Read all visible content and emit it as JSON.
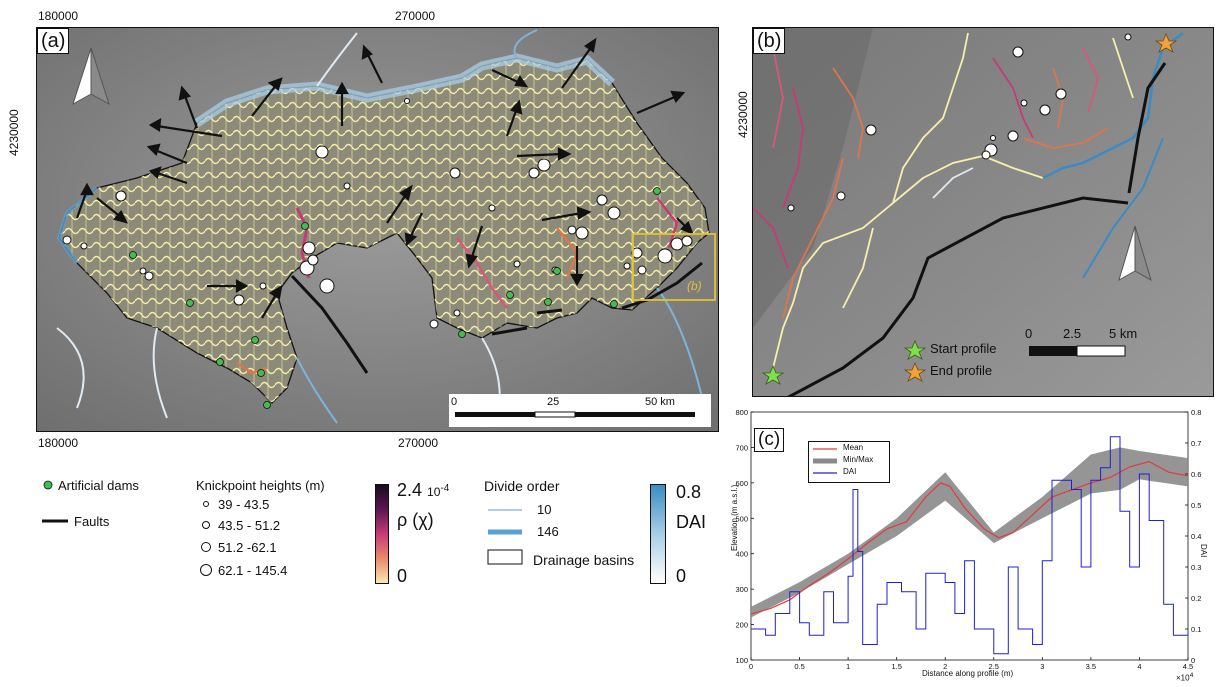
{
  "panel_a": {
    "label": "(a)",
    "x_ticks_top": [
      "180000",
      "270000"
    ],
    "x_ticks_bottom": [
      "180000",
      "270000"
    ],
    "y_tick": "4230000",
    "inset_label": "(b)",
    "scalebar": {
      "ticks": [
        "0",
        "25",
        "50 km"
      ]
    }
  },
  "panel_b": {
    "label": "(b)",
    "y_tick": "4230000",
    "start_label": "Start profile",
    "end_label": "End profile",
    "scalebar": {
      "ticks": [
        "0",
        "2.5",
        "5 km"
      ]
    }
  },
  "panel_c": {
    "label": "(c)",
    "ylabel_left": "Elevation (m a.s.l.)",
    "ylabel_right": "DAI",
    "xlabel": "Distance along profile (m)",
    "x_exponent": "×10",
    "x_exponent_power": "4",
    "legend": [
      "Mean",
      "Min/Max",
      "DAI"
    ]
  },
  "legend": {
    "dams": "Artificial dams",
    "faults": "Faults",
    "knick_title": "Knickpoint heights (m)",
    "knick_classes": [
      "39 - 43.5",
      "43.5 - 51.2",
      "51.2 -62.1",
      "62.1 - 145.4"
    ],
    "rho_max": "2.4",
    "rho_exp": "10",
    "rho_exp_power": "-4",
    "rho_label": "ρ (χ)",
    "rho_min": "0",
    "divide_title": "Divide order",
    "divide_low": "10",
    "divide_high": "146",
    "basins": "Drainage basins",
    "dai_max": "0.8",
    "dai_label": "DAI",
    "dai_min": "0"
  },
  "colors": {
    "streams": "#f7efaa",
    "rho_high": "#3b0a35",
    "rho_mid": "#c73a78",
    "rho_low": "#f4d6a0",
    "dai_high": "#3a8cc4",
    "dams": "#3fbf4f",
    "start": "#7ee04a",
    "end": "#f0a33a",
    "mean_line": "#e33a3a",
    "minmax": "#8a8a8a",
    "dai_line": "#2020d0"
  },
  "chart_data": {
    "type": "line",
    "x_unit": "m",
    "xlim": [
      0,
      45000
    ],
    "x_ticks": [
      0,
      0.5,
      1,
      1.5,
      2,
      2.5,
      3,
      3.5,
      4,
      4.5
    ],
    "ylim_left": [
      100,
      800
    ],
    "y_ticks_left": [
      100,
      200,
      300,
      400,
      500,
      600,
      700,
      800
    ],
    "ylim_right": [
      0,
      0.8
    ],
    "y_ticks_right": [
      0,
      0.1,
      0.2,
      0.3,
      0.4,
      0.5,
      0.6,
      0.7,
      0.8
    ],
    "series": [
      {
        "name": "Mean",
        "x": [
          0,
          2000,
          4000,
          6000,
          8000,
          10000,
          12000,
          14000,
          16000,
          18000,
          19500,
          20500,
          22000,
          24000,
          25500,
          27000,
          29000,
          31000,
          33000,
          35000,
          37000,
          39000,
          41000,
          43000,
          45000
        ],
        "y": [
          230,
          245,
          270,
          310,
          345,
          385,
          430,
          470,
          490,
          560,
          600,
          590,
          530,
          470,
          445,
          460,
          510,
          560,
          580,
          600,
          615,
          645,
          660,
          630,
          620
        ]
      },
      {
        "name": "Min/Max",
        "x": [
          0,
          5000,
          10000,
          15000,
          20000,
          25000,
          30000,
          35000,
          38000,
          40000,
          45000
        ],
        "y_min": [
          220,
          290,
          370,
          450,
          550,
          430,
          500,
          570,
          580,
          610,
          590
        ],
        "y_max": [
          250,
          320,
          400,
          500,
          630,
          460,
          560,
          680,
          700,
          690,
          670
        ]
      },
      {
        "name": "DAI",
        "x": [
          0,
          1500,
          2500,
          4000,
          5000,
          6000,
          7500,
          8500,
          10000,
          10500,
          11000,
          11500,
          13000,
          14000,
          15500,
          17000,
          18000,
          20000,
          21000,
          22000,
          23000,
          25000,
          26500,
          27500,
          29000,
          30000,
          31000,
          33000,
          34000,
          35000,
          36000,
          37000,
          38000,
          39000,
          40000,
          41000,
          42500,
          43500,
          45000
        ],
        "y": [
          0.1,
          0.08,
          0.15,
          0.22,
          0.12,
          0.08,
          0.22,
          0.12,
          0.27,
          0.55,
          0.35,
          0.05,
          0.18,
          0.25,
          0.22,
          0.1,
          0.28,
          0.25,
          0.15,
          0.32,
          0.1,
          0.02,
          0.3,
          0.1,
          0.05,
          0.32,
          0.58,
          0.55,
          0.3,
          0.58,
          0.62,
          0.72,
          0.48,
          0.3,
          0.6,
          0.45,
          0.18,
          0.08,
          0.1
        ]
      }
    ]
  }
}
